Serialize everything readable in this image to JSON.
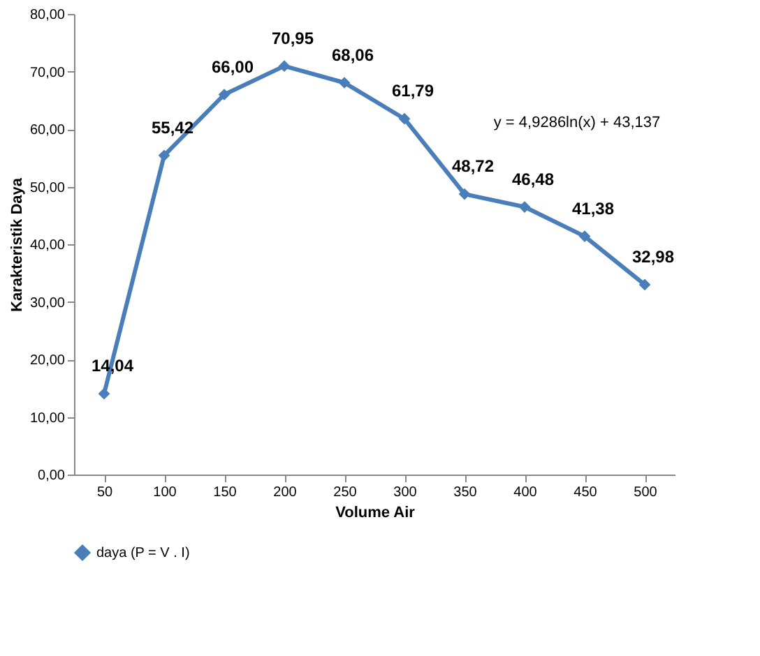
{
  "chart_data": {
    "type": "line",
    "xlabel": "Volume Air",
    "ylabel": "Karakteristik Daya",
    "categories": [
      "50",
      "100",
      "150",
      "200",
      "250",
      "300",
      "350",
      "400",
      "450",
      "500"
    ],
    "series": [
      {
        "name": "daya (P = V . I)",
        "color": "#4a7ebb",
        "values": [
          14.04,
          55.42,
          66.0,
          70.95,
          68.06,
          61.79,
          48.72,
          46.48,
          41.38,
          32.98
        ],
        "value_labels": [
          "14,04",
          "55,42",
          "66,00",
          "70,95",
          "68,06",
          "61,79",
          "48,72",
          "46,48",
          "41,38",
          "32,98"
        ]
      }
    ],
    "ylim": [
      0,
      80
    ],
    "yticks": [
      {
        "value": 0,
        "label": "0,00"
      },
      {
        "value": 10,
        "label": "10,00"
      },
      {
        "value": 20,
        "label": "20,00"
      },
      {
        "value": 30,
        "label": "30,00"
      },
      {
        "value": 40,
        "label": "40,00"
      },
      {
        "value": 50,
        "label": "50,00"
      },
      {
        "value": 60,
        "label": "60,00"
      },
      {
        "value": 70,
        "label": "70,00"
      },
      {
        "value": 80,
        "label": "80,00"
      }
    ],
    "annotations": [
      "y = 4,9286ln(x) + 43,137"
    ],
    "legend": "bottom",
    "marker": "diamond",
    "line_style": "solid",
    "grid": false
  }
}
